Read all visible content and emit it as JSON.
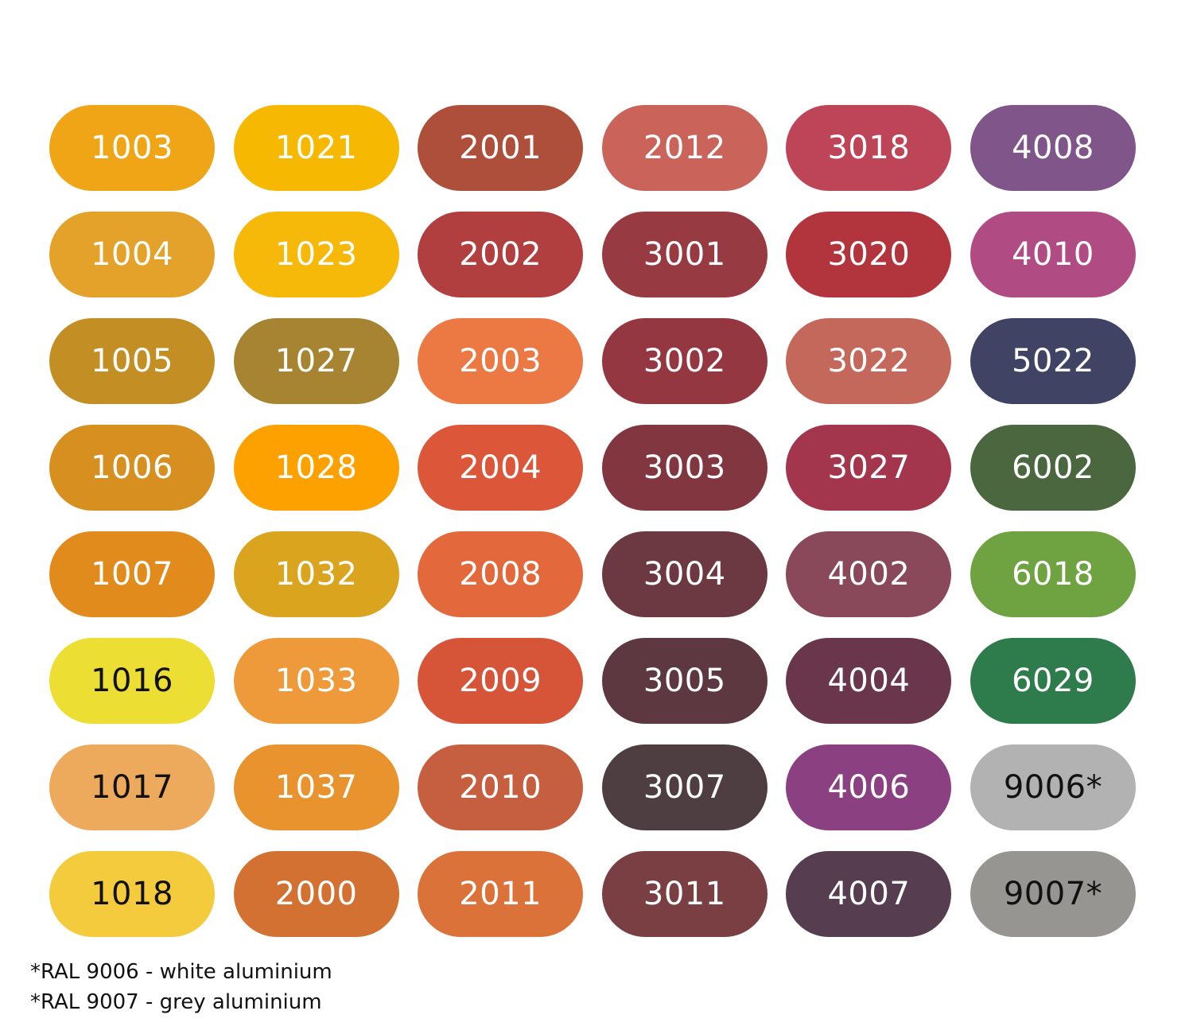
{
  "swatches": [
    {
      "label": "1003",
      "color": "#EFA515",
      "text": "light"
    },
    {
      "label": "1021",
      "color": "#F6B800",
      "text": "light"
    },
    {
      "label": "2001",
      "color": "#AE4F3B",
      "text": "light"
    },
    {
      "label": "2012",
      "color": "#CA645A",
      "text": "light"
    },
    {
      "label": "3018",
      "color": "#BE4458",
      "text": "light"
    },
    {
      "label": "4008",
      "color": "#80558A",
      "text": "light"
    },
    {
      "label": "1004",
      "color": "#E4A22A",
      "text": "light"
    },
    {
      "label": "1023",
      "color": "#F6B90A",
      "text": "light"
    },
    {
      "label": "2002",
      "color": "#B13F40",
      "text": "light"
    },
    {
      "label": "3001",
      "color": "#973A41",
      "text": "light"
    },
    {
      "label": "3020",
      "color": "#B2343D",
      "text": "light"
    },
    {
      "label": "4010",
      "color": "#B14B84",
      "text": "light"
    },
    {
      "label": "1005",
      "color": "#C38F24",
      "text": "light"
    },
    {
      "label": "1027",
      "color": "#A68431",
      "text": "light"
    },
    {
      "label": "2003",
      "color": "#EC7843",
      "text": "light"
    },
    {
      "label": "3002",
      "color": "#953740",
      "text": "light"
    },
    {
      "label": "3022",
      "color": "#C5685C",
      "text": "light"
    },
    {
      "label": "5022",
      "color": "#414365",
      "text": "light"
    },
    {
      "label": "1006",
      "color": "#D79020",
      "text": "light"
    },
    {
      "label": "1028",
      "color": "#FCA100",
      "text": "light"
    },
    {
      "label": "2004",
      "color": "#DC5739",
      "text": "light"
    },
    {
      "label": "3003",
      "color": "#823640",
      "text": "light"
    },
    {
      "label": "3027",
      "color": "#A3364D",
      "text": "light"
    },
    {
      "label": "6002",
      "color": "#4B6740",
      "text": "light"
    },
    {
      "label": "1007",
      "color": "#E18B1C",
      "text": "light"
    },
    {
      "label": "1032",
      "color": "#DBA41F",
      "text": "light"
    },
    {
      "label": "2008",
      "color": "#E3693C",
      "text": "light"
    },
    {
      "label": "3004",
      "color": "#6C3841",
      "text": "light"
    },
    {
      "label": "4002",
      "color": "#8A495A",
      "text": "light"
    },
    {
      "label": "6018",
      "color": "#6FA240",
      "text": "light"
    },
    {
      "label": "1016",
      "color": "#EDDE34",
      "text": "dark"
    },
    {
      "label": "1033",
      "color": "#EE9A3A",
      "text": "light"
    },
    {
      "label": "2009",
      "color": "#D65438",
      "text": "light"
    },
    {
      "label": "3005",
      "color": "#5D3840",
      "text": "light"
    },
    {
      "label": "4004",
      "color": "#6A364B",
      "text": "light"
    },
    {
      "label": "6029",
      "color": "#2E7C4C",
      "text": "light"
    },
    {
      "label": "1017",
      "color": "#EDAA5C",
      "text": "dark"
    },
    {
      "label": "1037",
      "color": "#E9932E",
      "text": "light"
    },
    {
      "label": "2010",
      "color": "#C65F40",
      "text": "light"
    },
    {
      "label": "3007",
      "color": "#4E3E41",
      "text": "light"
    },
    {
      "label": "4006",
      "color": "#8B4181",
      "text": "light"
    },
    {
      "label": "9006*",
      "color": "#B2B2B2",
      "text": "dark"
    },
    {
      "label": "1018",
      "color": "#F4CB3C",
      "text": "dark"
    },
    {
      "label": "2000",
      "color": "#D27131",
      "text": "light"
    },
    {
      "label": "2011",
      "color": "#DA7239",
      "text": "light"
    },
    {
      "label": "3011",
      "color": "#7A3F42",
      "text": "light"
    },
    {
      "label": "4007",
      "color": "#573D50",
      "text": "light"
    },
    {
      "label": "9007*",
      "color": "#979591",
      "text": "dark"
    }
  ],
  "footnotes": [
    "*RAL 9006 - white aluminium",
    "*RAL 9007 - grey aluminium"
  ]
}
